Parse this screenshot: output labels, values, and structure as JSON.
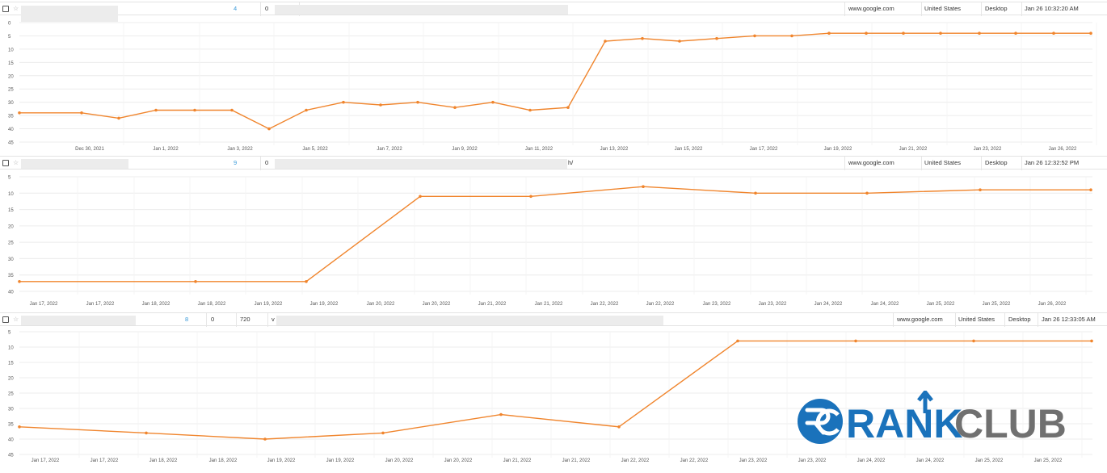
{
  "colors": {
    "line": "#f0852d",
    "grid": "#ececec",
    "link": "#3a9ad9",
    "logo_blue": "#1a72bb",
    "logo_gray": "#707070"
  },
  "rows": [
    {
      "position": "4",
      "change": "0",
      "volume": "",
      "url_suffix": "",
      "engine": "www.google.com",
      "country": "United States",
      "device": "Desktop",
      "checked": "Jan 26 10:32:20 AM"
    },
    {
      "position": "9",
      "change": "0",
      "volume": "",
      "url_suffix": "h/",
      "engine": "www.google.com",
      "country": "United States",
      "device": "Desktop",
      "checked": "Jan 26 12:32:52 PM"
    },
    {
      "position": "8",
      "change": "0",
      "volume": "720",
      "url_suffix": "v",
      "engine": "www.google.com",
      "country": "United States",
      "device": "Desktop",
      "checked": "Jan 26 12:33:05 AM"
    }
  ],
  "chart_data": [
    {
      "type": "line",
      "y_reversed": true,
      "ylim": [
        0,
        45
      ],
      "yticks": [
        0,
        5,
        10,
        15,
        20,
        25,
        30,
        35,
        40,
        45
      ],
      "xticks": [
        "Dec 30, 2021",
        "Jan 1, 2022",
        "Jan 3, 2022",
        "Jan 5, 2022",
        "Jan 7, 2022",
        "Jan 9, 2022",
        "Jan 11, 2022",
        "Jan 13, 2022",
        "Jan 15, 2022",
        "Jan 17, 2022",
        "Jan 19, 2022",
        "Jan 21, 2022",
        "Jan 23, 2022",
        "Jan 26, 2022"
      ],
      "series": [
        {
          "values": [
            34,
            34,
            36,
            33,
            33,
            33,
            40,
            33,
            30,
            31,
            30,
            32,
            30,
            33,
            32,
            7,
            6,
            7,
            6,
            5,
            5,
            4,
            4,
            4,
            4,
            4,
            4,
            4,
            4,
            4
          ]
        }
      ]
    },
    {
      "type": "line",
      "y_reversed": true,
      "ylim": [
        5,
        40
      ],
      "yticks": [
        5,
        10,
        15,
        20,
        25,
        30,
        35,
        40
      ],
      "xticks": [
        "Jan 17, 2022",
        "Jan 17, 2022",
        "Jan 18, 2022",
        "Jan 18, 2022",
        "Jan 19, 2022",
        "Jan 19, 2022",
        "Jan 20, 2022",
        "Jan 20, 2022",
        "Jan 21, 2022",
        "Jan 21, 2022",
        "Jan 22, 2022",
        "Jan 22, 2022",
        "Jan 23, 2022",
        "Jan 23, 2022",
        "Jan 24, 2022",
        "Jan 24, 2022",
        "Jan 25, 2022",
        "Jan 25, 2022",
        "Jan 26, 2022"
      ],
      "series": [
        {
          "values": [
            37,
            37,
            37,
            11,
            11,
            8,
            10,
            10,
            9,
            9
          ]
        }
      ]
    },
    {
      "type": "line",
      "y_reversed": true,
      "ylim": [
        5,
        45
      ],
      "yticks": [
        5,
        10,
        15,
        20,
        25,
        30,
        35,
        40,
        45
      ],
      "xticks": [
        "Jan 17, 2022",
        "Jan 17, 2022",
        "Jan 18, 2022",
        "Jan 18, 2022",
        "Jan 19, 2022",
        "Jan 19, 2022",
        "Jan 20, 2022",
        "Jan 20, 2022",
        "Jan 21, 2022",
        "Jan 21, 2022",
        "Jan 22, 2022",
        "Jan 22, 2022",
        "Jan 23, 2022",
        "Jan 23, 2022",
        "Jan 24, 2022",
        "Jan 24, 2022",
        "Jan 25, 2022",
        "Jan 25, 2022"
      ],
      "series": [
        {
          "values": [
            36,
            38,
            40,
            38,
            32,
            36,
            8,
            8,
            8,
            8
          ]
        }
      ]
    }
  ],
  "logo": {
    "text_blue": "RANK",
    "text_gray": "CLUB",
    "icon": "rankclub-rc-icon"
  }
}
